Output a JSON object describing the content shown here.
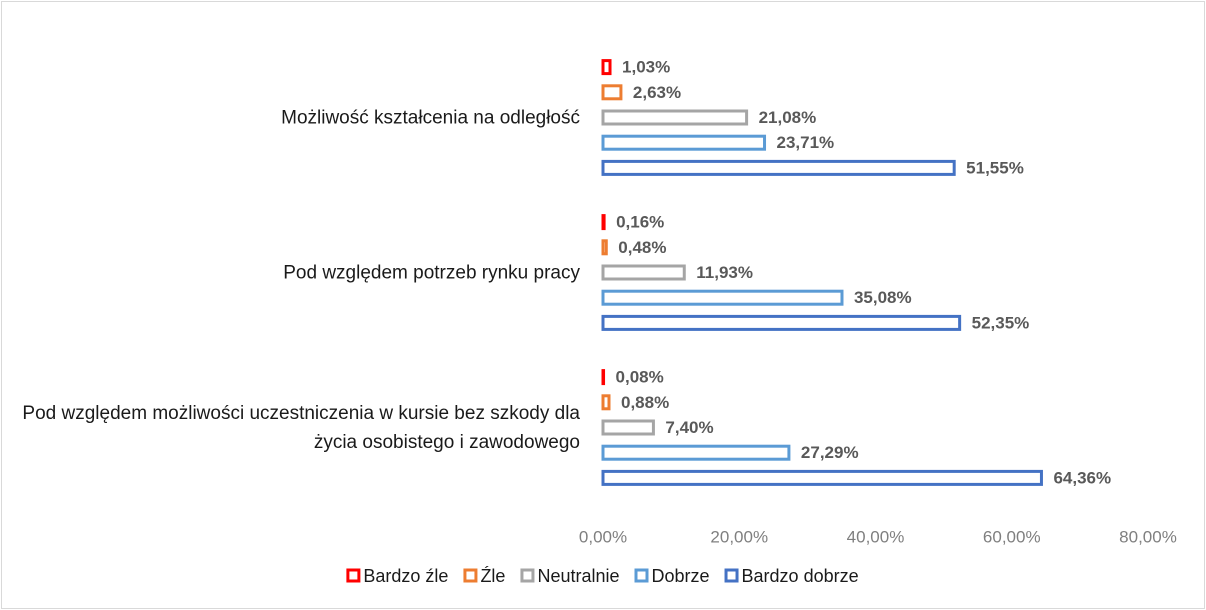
{
  "chart_data": {
    "type": "bar",
    "orientation": "horizontal",
    "categories": [
      "Możliwość kształcenia na odległość",
      "Pod względem potrzeb rynku pracy",
      "Pod względem możliwości uczestniczenia w kursie bez szkody dla życia osobistego i zawodowego"
    ],
    "series": [
      {
        "name": "Bardzo źle",
        "color": "#ff0000",
        "values": [
          1.03,
          0.16,
          0.08
        ],
        "value_labels": [
          "1,03%",
          "0,16%",
          "0,08%"
        ]
      },
      {
        "name": "Źle",
        "color": "#ed7d31",
        "values": [
          2.63,
          0.48,
          0.88
        ],
        "value_labels": [
          "2,63%",
          "0,48%",
          "0,88%"
        ]
      },
      {
        "name": "Neutralnie",
        "color": "#a5a5a5",
        "values": [
          21.08,
          11.93,
          7.4
        ],
        "value_labels": [
          "21,08%",
          "11,93%",
          "7,40%"
        ]
      },
      {
        "name": "Dobrze",
        "color": "#5b9bd5",
        "values": [
          23.71,
          35.08,
          27.29
        ],
        "value_labels": [
          "23,71%",
          "35,08%",
          "27,29%"
        ]
      },
      {
        "name": "Bardzo dobrze",
        "color": "#4472c4",
        "values": [
          51.55,
          52.35,
          64.36
        ],
        "value_labels": [
          "51,55%",
          "52,35%",
          "64,36%"
        ]
      }
    ],
    "xlim": [
      0,
      80
    ],
    "xticks": [
      {
        "value": 0,
        "label": "0,00%"
      },
      {
        "value": 20,
        "label": "20,00%"
      },
      {
        "value": 40,
        "label": "40,00%"
      },
      {
        "value": 60,
        "label": "60,00%"
      },
      {
        "value": 80,
        "label": "80,00%"
      }
    ],
    "legend": "bottom"
  }
}
